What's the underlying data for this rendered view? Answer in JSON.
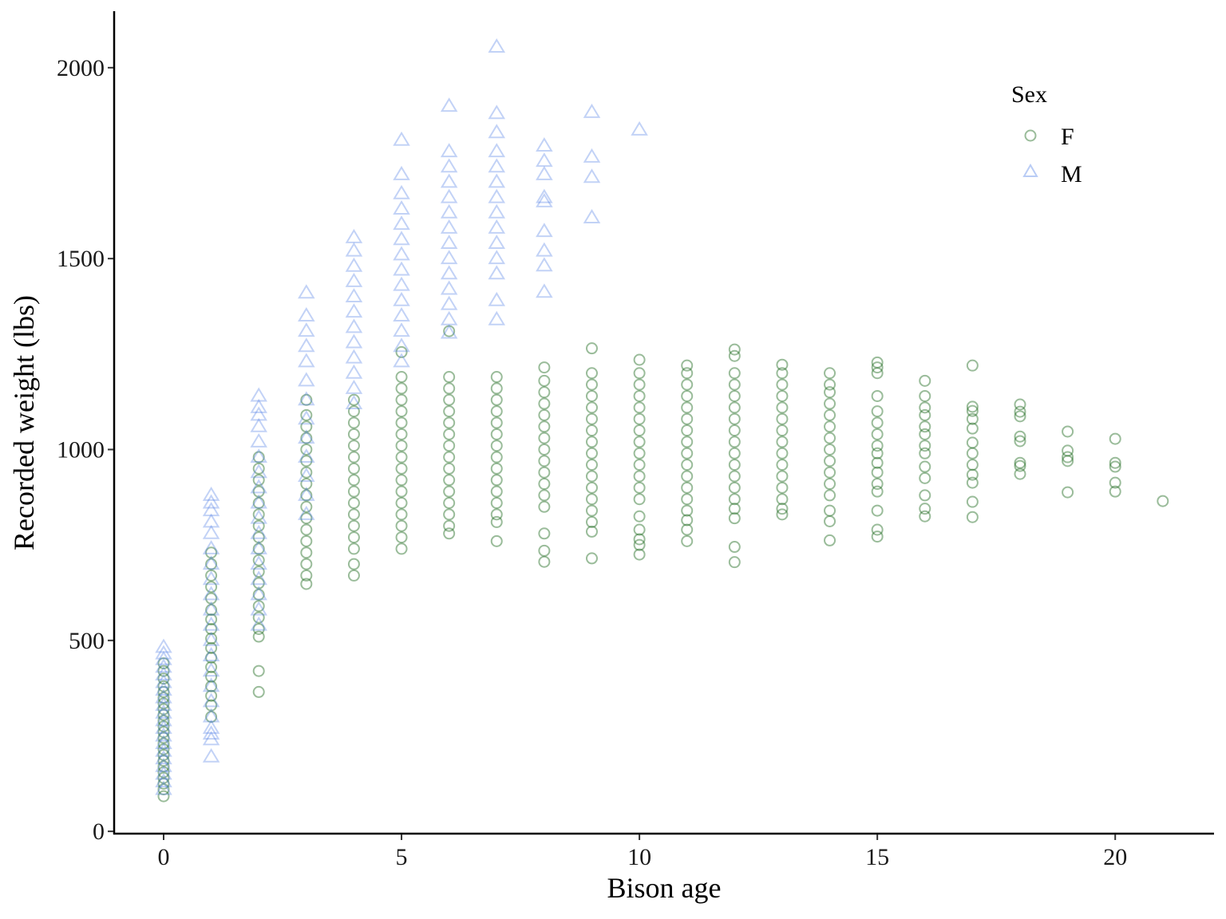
{
  "chart_data": {
    "type": "scatter",
    "title": "",
    "xlabel": "Bison age",
    "ylabel": "Recorded weight (lbs)",
    "xlim": [
      -1.04,
      22.06
    ],
    "ylim": [
      -6,
      2148
    ],
    "x_ticks": [
      0,
      5,
      10,
      15,
      20
    ],
    "x_tick_labels": [
      "0",
      "5",
      "10",
      "15",
      "20"
    ],
    "y_ticks": [
      0,
      500,
      1000,
      1500,
      2000
    ],
    "y_tick_labels": [
      "0",
      "500",
      "1000",
      "1500",
      "2000"
    ],
    "grid": false,
    "legend": {
      "title": "Sex",
      "position": "top-right",
      "entries": [
        {
          "label": "F",
          "marker": "circle",
          "color": "#1f6b1f"
        },
        {
          "label": "M",
          "marker": "triangle",
          "color": "#4f7fe6"
        }
      ]
    },
    "series": [
      {
        "name": "F",
        "marker": "circle",
        "color": "#1f6b1f",
        "groups": [
          {
            "x": 0,
            "y": [
              92,
              110,
              125,
              140,
              155,
              170,
              185,
              200,
              215,
              230,
              245,
              260,
              275,
              290,
              305,
              320,
              335,
              350,
              365,
              380,
              400,
              420,
              440
            ]
          },
          {
            "x": 1,
            "y": [
              300,
              330,
              355,
              380,
              405,
              430,
              455,
              480,
              505,
              530,
              555,
              580,
              610,
              640,
              670,
              700,
              730
            ]
          },
          {
            "x": 2,
            "y": [
              365,
              420,
              510,
              530,
              560,
              590,
              620,
              650,
              680,
              710,
              740,
              770,
              800,
              830,
              860,
              890,
              920,
              950,
              980
            ]
          },
          {
            "x": 3,
            "y": [
              648,
              670,
              700,
              730,
              760,
              790,
              820,
              850,
              880,
              910,
              940,
              970,
              1000,
              1030,
              1060,
              1090,
              1130
            ]
          },
          {
            "x": 4,
            "y": [
              670,
              700,
              740,
              770,
              800,
              830,
              860,
              890,
              920,
              950,
              980,
              1010,
              1040,
              1070,
              1100,
              1130
            ]
          },
          {
            "x": 5,
            "y": [
              740,
              770,
              800,
              830,
              860,
              890,
              920,
              950,
              980,
              1010,
              1040,
              1070,
              1100,
              1130,
              1160,
              1190,
              1255
            ]
          },
          {
            "x": 6,
            "y": [
              780,
              800,
              830,
              860,
              890,
              920,
              950,
              980,
              1010,
              1040,
              1070,
              1100,
              1130,
              1160,
              1190,
              1310
            ]
          },
          {
            "x": 7,
            "y": [
              760,
              810,
              830,
              860,
              890,
              920,
              950,
              980,
              1010,
              1040,
              1070,
              1100,
              1130,
              1160,
              1190
            ]
          },
          {
            "x": 8,
            "y": [
              706,
              735,
              780,
              850,
              880,
              910,
              940,
              970,
              1000,
              1030,
              1060,
              1090,
              1120,
              1150,
              1180,
              1215
            ]
          },
          {
            "x": 9,
            "y": [
              715,
              785,
              810,
              840,
              870,
              900,
              930,
              960,
              990,
              1020,
              1050,
              1080,
              1110,
              1140,
              1170,
              1200,
              1265
            ]
          },
          {
            "x": 10,
            "y": [
              725,
              750,
              765,
              790,
              825,
              870,
              900,
              930,
              960,
              990,
              1020,
              1050,
              1080,
              1110,
              1140,
              1170,
              1200,
              1235
            ]
          },
          {
            "x": 11,
            "y": [
              760,
              790,
              815,
              840,
              870,
              900,
              930,
              960,
              990,
              1020,
              1050,
              1080,
              1110,
              1140,
              1170,
              1200,
              1220
            ]
          },
          {
            "x": 12,
            "y": [
              705,
              745,
              820,
              845,
              870,
              900,
              930,
              960,
              990,
              1020,
              1050,
              1080,
              1110,
              1140,
              1170,
              1200,
              1245,
              1262
            ]
          },
          {
            "x": 13,
            "y": [
              830,
              845,
              870,
              900,
              930,
              960,
              990,
              1020,
              1050,
              1080,
              1110,
              1140,
              1170,
              1200,
              1222
            ]
          },
          {
            "x": 14,
            "y": [
              762,
              812,
              840,
              880,
              910,
              940,
              970,
              1000,
              1030,
              1060,
              1090,
              1120,
              1150,
              1170,
              1200
            ]
          },
          {
            "x": 15,
            "y": [
              772,
              790,
              840,
              890,
              910,
              940,
              965,
              990,
              1010,
              1040,
              1070,
              1100,
              1140,
              1200,
              1215,
              1228
            ]
          },
          {
            "x": 16,
            "y": [
              825,
              845,
              880,
              925,
              955,
              990,
              1010,
              1040,
              1060,
              1090,
              1110,
              1140,
              1180
            ]
          },
          {
            "x": 17,
            "y": [
              823,
              863,
              913,
              934,
              960,
              990,
              1018,
              1055,
              1080,
              1101,
              1112,
              1220
            ]
          },
          {
            "x": 18,
            "y": [
              936,
              957,
              965,
              1022,
              1034,
              1087,
              1099,
              1118
            ]
          },
          {
            "x": 19,
            "y": [
              888,
              970,
              980,
              997,
              1047
            ]
          },
          {
            "x": 20,
            "y": [
              890,
              913,
              955,
              965,
              1028
            ]
          },
          {
            "x": 21,
            "y": [
              865
            ]
          }
        ]
      },
      {
        "name": "M",
        "marker": "triangle",
        "color": "#4f7fe6",
        "groups": [
          {
            "x": 0,
            "y": [
              110,
              130,
              150,
              170,
              190,
              210,
              230,
              250,
              270,
              290,
              310,
              330,
              350,
              370,
              390,
              410,
              430,
              450,
              465,
              482
            ]
          },
          {
            "x": 1,
            "y": [
              195,
              240,
              255,
              270,
              300,
              340,
              380,
              420,
              460,
              500,
              540,
              580,
              620,
              660,
              700,
              740,
              780,
              810,
              840,
              860,
              880
            ]
          },
          {
            "x": 2,
            "y": [
              540,
              580,
              620,
              660,
              700,
              740,
              780,
              820,
              860,
              900,
              940,
              980,
              1020,
              1060,
              1090,
              1110,
              1140
            ]
          },
          {
            "x": 3,
            "y": [
              830,
              880,
              930,
              980,
              1030,
              1080,
              1130,
              1180,
              1230,
              1270,
              1310,
              1350,
              1410
            ]
          },
          {
            "x": 4,
            "y": [
              1120,
              1160,
              1200,
              1240,
              1280,
              1320,
              1360,
              1400,
              1440,
              1480,
              1520,
              1555
            ]
          },
          {
            "x": 5,
            "y": [
              1230,
              1270,
              1310,
              1350,
              1390,
              1430,
              1470,
              1510,
              1550,
              1590,
              1630,
              1670,
              1720,
              1810
            ]
          },
          {
            "x": 6,
            "y": [
              1305,
              1340,
              1380,
              1420,
              1460,
              1500,
              1540,
              1580,
              1620,
              1660,
              1700,
              1740,
              1780,
              1899
            ]
          },
          {
            "x": 7,
            "y": [
              1340,
              1390,
              1460,
              1500,
              1540,
              1580,
              1620,
              1660,
              1700,
              1740,
              1780,
              1830,
              1880,
              2054
            ]
          },
          {
            "x": 8,
            "y": [
              1412,
              1481,
              1520,
              1571,
              1649,
              1660,
              1720,
              1755,
              1795
            ]
          },
          {
            "x": 9,
            "y": [
              1607,
              1713,
              1766,
              1883
            ]
          },
          {
            "x": 10,
            "y": [
              1837
            ]
          }
        ]
      }
    ]
  }
}
